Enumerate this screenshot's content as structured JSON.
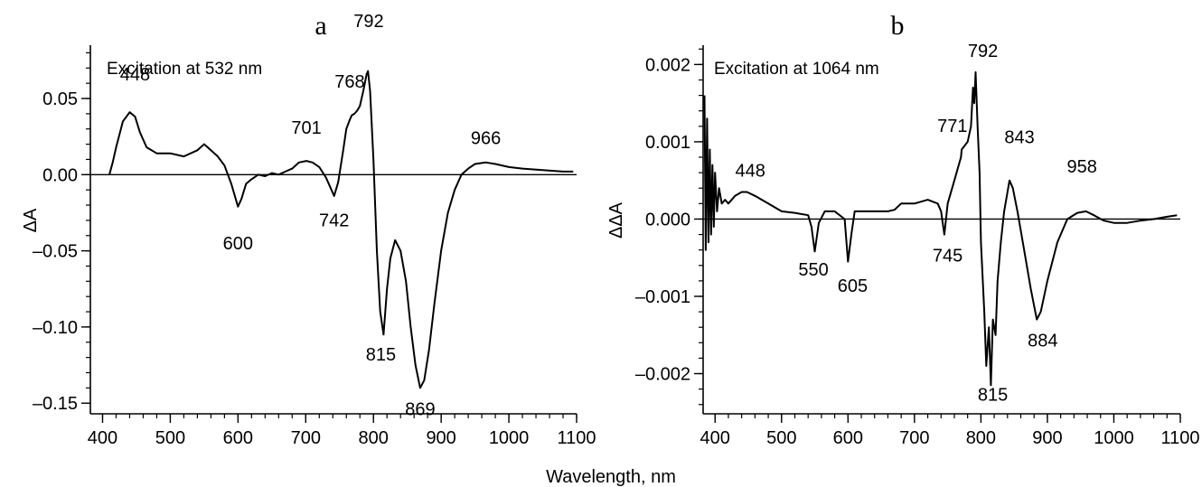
{
  "figure": {
    "xlabel": "Wavelength, nm"
  },
  "chart_data": [
    {
      "type": "line",
      "panel_letter": "a",
      "annotation": "Excitation at 532 nm",
      "xlabel": "Wavelength, nm",
      "ylabel": "ΔA",
      "xlim": [
        382,
        1100
      ],
      "ylim": [
        -0.157,
        0.085
      ],
      "xticks": [
        400,
        500,
        600,
        700,
        800,
        900,
        1000,
        1100
      ],
      "xtick_labels": [
        "400",
        "500",
        "600",
        "700",
        "800",
        "900",
        "1000",
        "1100"
      ],
      "yticks": [
        0.05,
        0.0,
        -0.05,
        -0.1,
        -0.15
      ],
      "ytick_labels": [
        "0.05",
        "0.00",
        "–0.05",
        "–0.10",
        "–0.15"
      ],
      "zero_line": true,
      "grid": false,
      "series": [
        {
          "x": [
            410,
            415,
            420,
            430,
            440,
            448,
            455,
            465,
            480,
            500,
            520,
            540,
            550,
            560,
            570,
            580,
            590,
            600,
            605,
            612,
            620,
            630,
            640,
            650,
            660,
            670,
            680,
            690,
            701,
            710,
            720,
            730,
            742,
            748,
            755,
            760,
            765,
            768,
            772,
            776,
            780,
            785,
            790,
            792,
            795,
            800,
            805,
            810,
            815,
            820,
            825,
            832,
            840,
            848,
            855,
            862,
            869,
            875,
            882,
            890,
            900,
            910,
            920,
            930,
            940,
            950,
            966,
            980,
            1000,
            1020,
            1050,
            1080,
            1095
          ],
          "y": [
            0.0,
            0.008,
            0.018,
            0.035,
            0.041,
            0.038,
            0.028,
            0.018,
            0.014,
            0.014,
            0.012,
            0.016,
            0.02,
            0.016,
            0.012,
            0.006,
            -0.006,
            -0.021,
            -0.016,
            -0.006,
            -0.003,
            0.0,
            -0.001,
            0.001,
            0.0,
            0.002,
            0.004,
            0.008,
            0.009,
            0.008,
            0.005,
            -0.002,
            -0.014,
            -0.005,
            0.015,
            0.03,
            0.036,
            0.039,
            0.04,
            0.042,
            0.045,
            0.055,
            0.066,
            0.068,
            0.055,
            0.01,
            -0.05,
            -0.09,
            -0.105,
            -0.075,
            -0.055,
            -0.043,
            -0.05,
            -0.07,
            -0.1,
            -0.125,
            -0.14,
            -0.135,
            -0.115,
            -0.085,
            -0.05,
            -0.025,
            -0.01,
            0.0,
            0.004,
            0.007,
            0.008,
            0.007,
            0.005,
            0.004,
            0.003,
            0.002,
            0.002
          ]
        }
      ],
      "peak_labels": [
        {
          "text": "448",
          "x": 448,
          "y": 0.062
        },
        {
          "text": "600",
          "x": 600,
          "y": -0.049
        },
        {
          "text": "701",
          "x": 701,
          "y": 0.027
        },
        {
          "text": "742",
          "x": 742,
          "y": -0.034
        },
        {
          "text": "768",
          "x": 765,
          "y": 0.057
        },
        {
          "text": "792",
          "x": 793,
          "y": 0.097
        },
        {
          "text": "815",
          "x": 811,
          "y": -0.122
        },
        {
          "text": "869",
          "x": 869,
          "y": -0.158
        },
        {
          "text": "966",
          "x": 966,
          "y": 0.02
        }
      ]
    },
    {
      "type": "line",
      "panel_letter": "b",
      "annotation": "Excitation at 1064 nm",
      "xlabel": "Wavelength, nm",
      "ylabel": "ΔΔA",
      "xlim": [
        382,
        1100
      ],
      "ylim": [
        -0.00252,
        0.00225
      ],
      "xticks": [
        400,
        500,
        600,
        700,
        800,
        900,
        1000,
        1100
      ],
      "xtick_labels": [
        "400",
        "500",
        "600",
        "700",
        "800",
        "900",
        "1000",
        "1100"
      ],
      "yticks": [
        0.002,
        0.001,
        0.0,
        -0.001,
        -0.002
      ],
      "ytick_labels": [
        "0.002",
        "0.001",
        "0.000",
        "–0.001",
        "–0.002"
      ],
      "zero_line": true,
      "grid": false,
      "series": [
        {
          "x": [
            384,
            386,
            388,
            390,
            392,
            394,
            396,
            398,
            400,
            403,
            406,
            410,
            415,
            420,
            430,
            440,
            448,
            460,
            480,
            500,
            520,
            540,
            545,
            550,
            556,
            565,
            580,
            595,
            600,
            605,
            610,
            620,
            640,
            660,
            670,
            680,
            700,
            720,
            735,
            740,
            745,
            750,
            760,
            770,
            771,
            780,
            785,
            788,
            790,
            792,
            795,
            798,
            800,
            805,
            808,
            812,
            815,
            818,
            822,
            825,
            830,
            835,
            843,
            848,
            855,
            865,
            875,
            884,
            890,
            900,
            915,
            930,
            945,
            958,
            970,
            985,
            1000,
            1020,
            1040,
            1060,
            1080,
            1095
          ],
          "y": [
            0.0016,
            -0.0004,
            0.0013,
            -0.0003,
            0.0009,
            -0.0002,
            0.0007,
            -0.0001,
            0.0006,
            0.0001,
            0.0004,
            0.0002,
            0.00025,
            0.0002,
            0.0003,
            0.00035,
            0.00035,
            0.0003,
            0.0002,
            0.0001,
            8e-05,
            5e-05,
            -0.0001,
            -0.00042,
            -5e-05,
            0.0001,
            0.0001,
            0.0,
            -0.00055,
            -0.0002,
            0.0001,
            0.0001,
            0.0001,
            0.0001,
            0.00012,
            0.0002,
            0.0002,
            0.00025,
            0.0002,
            0.0001,
            -0.0002,
            0.0002,
            0.0005,
            0.0008,
            0.0009,
            0.001,
            0.0012,
            0.0017,
            0.0015,
            0.0019,
            0.0012,
            0.0006,
            -0.0003,
            -0.0012,
            -0.0019,
            -0.0014,
            -0.00215,
            -0.0013,
            -0.0015,
            -0.0008,
            -0.0003,
            0.0001,
            0.0005,
            0.0004,
            0.0001,
            -0.0004,
            -0.0009,
            -0.0013,
            -0.0012,
            -0.0008,
            -0.0003,
            0.0,
            8e-05,
            0.0001,
            5e-05,
            -2e-05,
            -5e-05,
            -5e-05,
            -2e-05,
            0.0,
            3e-05,
            5e-05
          ]
        }
      ],
      "peak_labels": [
        {
          "text": "448",
          "x": 453,
          "y": 0.00055
        },
        {
          "text": "550",
          "x": 548,
          "y": -0.00073
        },
        {
          "text": "605",
          "x": 607,
          "y": -0.00094
        },
        {
          "text": "745",
          "x": 750,
          "y": -0.00055
        },
        {
          "text": "771",
          "x": 757,
          "y": 0.00113
        },
        {
          "text": "792",
          "x": 803,
          "y": 0.0021
        },
        {
          "text": "815",
          "x": 818,
          "y": -0.00235
        },
        {
          "text": "843",
          "x": 858,
          "y": 0.00098
        },
        {
          "text": "884",
          "x": 893,
          "y": -0.00165
        },
        {
          "text": "958",
          "x": 952,
          "y": 0.0006
        }
      ]
    }
  ]
}
